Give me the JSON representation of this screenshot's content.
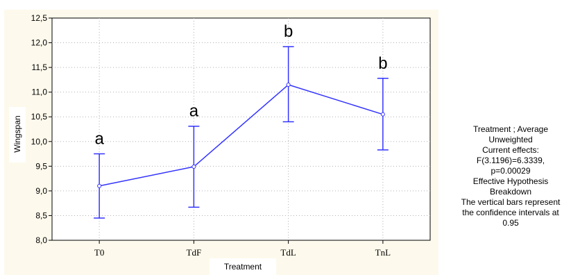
{
  "chart_data": {
    "type": "line",
    "categories": [
      "T0",
      "TdF",
      "TdL",
      "TnL"
    ],
    "series": [
      {
        "values": [
          9.1,
          9.49,
          11.15,
          10.55
        ],
        "ci_low": [
          8.45,
          8.67,
          10.4,
          9.83
        ],
        "ci_high": [
          9.75,
          10.31,
          11.92,
          11.28
        ],
        "labels": [
          "a",
          "a",
          "b",
          "b"
        ],
        "color": "#3333ff"
      }
    ],
    "xlabel": "Treatment",
    "ylabel": "Wingspan",
    "ylim": [
      8.0,
      12.5
    ],
    "yticks": [
      "8,0",
      "8,5",
      "9,0",
      "9,5",
      "10,0",
      "10,5",
      "11,0",
      "11,5",
      "12,0",
      "12,5"
    ],
    "grid": true,
    "grid_style": "dotted",
    "background": "#fdf9ec",
    "note_lines": [
      "Treatment ; Average",
      "Unweighted",
      "Current effects:",
      "F(3.1196)=6.3339,",
      "p=0.00029",
      "Effective Hypothesis",
      "Breakdown",
      "The vertical bars represent",
      "the confidence intervals at",
      "0.95"
    ]
  }
}
